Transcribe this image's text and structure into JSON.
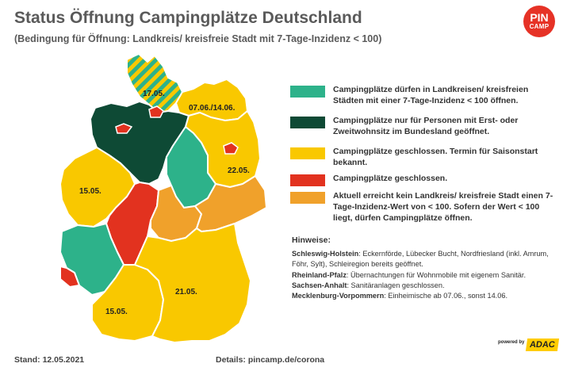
{
  "title": "Status Öffnung Campingplätze Deutschland",
  "subtitle": "(Bedingung für Öffnung: Landkreis/ kreisfreie Stadt mit 7-Tage-Inzidenz < 100)",
  "logo": {
    "line1": "PIN",
    "line2": "CAMP"
  },
  "colors": {
    "light_green": "#2db28a",
    "dark_green": "#0e4a35",
    "yellow": "#f9c800",
    "red": "#e2321f",
    "orange": "#f0a12b"
  },
  "map_labels": {
    "sh": "17.05.",
    "mv": "07.06./14.06.",
    "bb": "22.05.",
    "nrw": "15.05.",
    "by": "21.05.",
    "bw": "15.05."
  },
  "legend": [
    {
      "color": "#2db28a",
      "text": "Campingplätze dürfen in Landkreisen/ kreisfreien Städten mit einer 7-Tage-Inzidenz < 100 öffnen."
    },
    {
      "color": "#0e4a35",
      "text": "Campingplätze  nur für Personen mit Erst- oder Zweitwohnsitz im Bundesland geöffnet."
    },
    {
      "color": "#f9c800",
      "text": "Campingplätze geschlossen. Termin für Saisonstart bekannt."
    },
    {
      "color": "#e2321f",
      "text": "Campingplätze geschlossen."
    },
    {
      "color": "#f0a12b",
      "text": "Aktuell erreicht kein Landkreis/ kreisfreie Stadt einen 7-Tage-Inzidenz-Wert von < 100. Sofern der Wert < 100 liegt, dürfen Campingplätze öffnen."
    }
  ],
  "notes": {
    "heading": "Hinweise:",
    "items": [
      {
        "region": "Schleswig-Holstein",
        "text": ": Eckernförde, Lübecker Bucht, Nordfriesland (inkl. Amrum, Föhr, Sylt), Schleiregion bereits geöffnet."
      },
      {
        "region": "Rheinland-Pfalz",
        "text": ": Übernachtungen für Wohnmobile mit eigenem Sanitär."
      },
      {
        "region": "Sachsen-Anhalt",
        "text": ": Sanitäranlagen geschlossen."
      },
      {
        "region": "Mecklenburg-Vorpommern",
        "text": ": Einheimische ab 07.06., sonst 14.06."
      }
    ]
  },
  "footer": {
    "stand": "Stand: 12.05.2021",
    "details": "Details: pincamp.de/corona",
    "powered_by": "powered by",
    "adac": "ADAC"
  }
}
